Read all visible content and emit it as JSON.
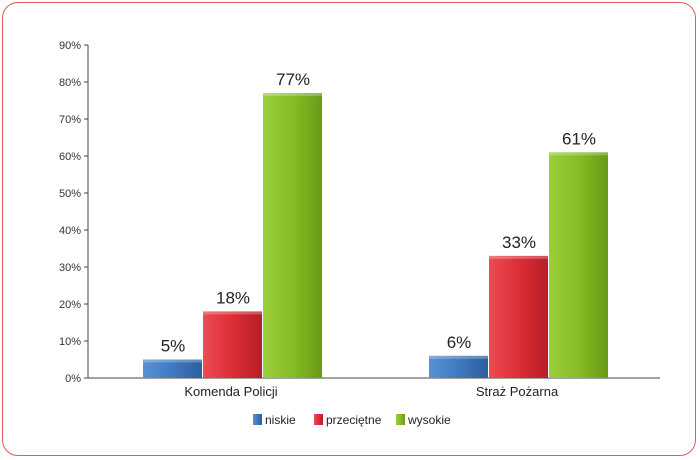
{
  "chart_data": {
    "type": "bar",
    "categories": [
      "Komenda Policji",
      "Straż Pożarna"
    ],
    "series": [
      {
        "name": "niskie",
        "values": [
          5,
          6
        ],
        "labels": [
          "5%",
          "6%"
        ],
        "color": "#3f79c0"
      },
      {
        "name": "przeciętne",
        "values": [
          18,
          33
        ],
        "labels": [
          "18%",
          "33%"
        ],
        "color": "#e0313a"
      },
      {
        "name": "wysokie",
        "values": [
          77,
          61
        ],
        "labels": [
          "77%",
          "61%"
        ],
        "color": "#86bc25"
      }
    ],
    "ylim": [
      0,
      90
    ],
    "yticks": [
      "0%",
      "10%",
      "20%",
      "30%",
      "40%",
      "50%",
      "60%",
      "70%",
      "80%",
      "90%"
    ],
    "legend_position": "bottom",
    "grid": false
  }
}
